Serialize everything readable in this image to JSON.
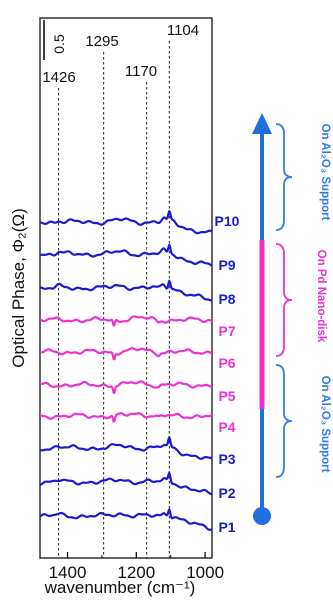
{
  "chart_data": {
    "type": "line",
    "xlabel": "wavenumber (cm⁻¹)",
    "ylabel": "Optical Phase, Φ₂(Ω)",
    "xlim": [
      1480,
      980
    ],
    "x_ticks": [
      1400,
      1200,
      1000
    ],
    "scale_bar": "0.5",
    "reference_lines": [
      {
        "x": 1426,
        "label": "1426"
      },
      {
        "x": 1295,
        "label": "1295"
      },
      {
        "x": 1170,
        "label": "1170"
      },
      {
        "x": 1104,
        "label": "1104"
      }
    ],
    "series": [
      {
        "name": "P1",
        "group": "support",
        "color": "#1a1ad6"
      },
      {
        "name": "P2",
        "group": "support",
        "color": "#1a1ad6"
      },
      {
        "name": "P3",
        "group": "support",
        "color": "#1a1ad6"
      },
      {
        "name": "P4",
        "group": "disk",
        "color": "#ee33cc"
      },
      {
        "name": "P5",
        "group": "disk",
        "color": "#ee33cc"
      },
      {
        "name": "P6",
        "group": "disk",
        "color": "#ee33cc"
      },
      {
        "name": "P7",
        "group": "disk",
        "color": "#ee33cc"
      },
      {
        "name": "P8",
        "group": "support",
        "color": "#1a1ad6"
      },
      {
        "name": "P9",
        "group": "support",
        "color": "#1a1ad6"
      },
      {
        "name": "P10",
        "group": "support",
        "color": "#1a1ad6"
      }
    ],
    "annotations": {
      "upper_support": "On Al₂O₃ Support",
      "pd_disk": "On Pd Nano-disk",
      "lower_support": "On Al₂O₃ Support"
    },
    "colors": {
      "support": "#1a1ad6",
      "disk": "#ee33cc",
      "arrow": "#1f6fe0",
      "annotation_blue": "#2f7de8",
      "annotation_pink": "#ee33cc",
      "label_blue": "#1a1ad6"
    }
  }
}
